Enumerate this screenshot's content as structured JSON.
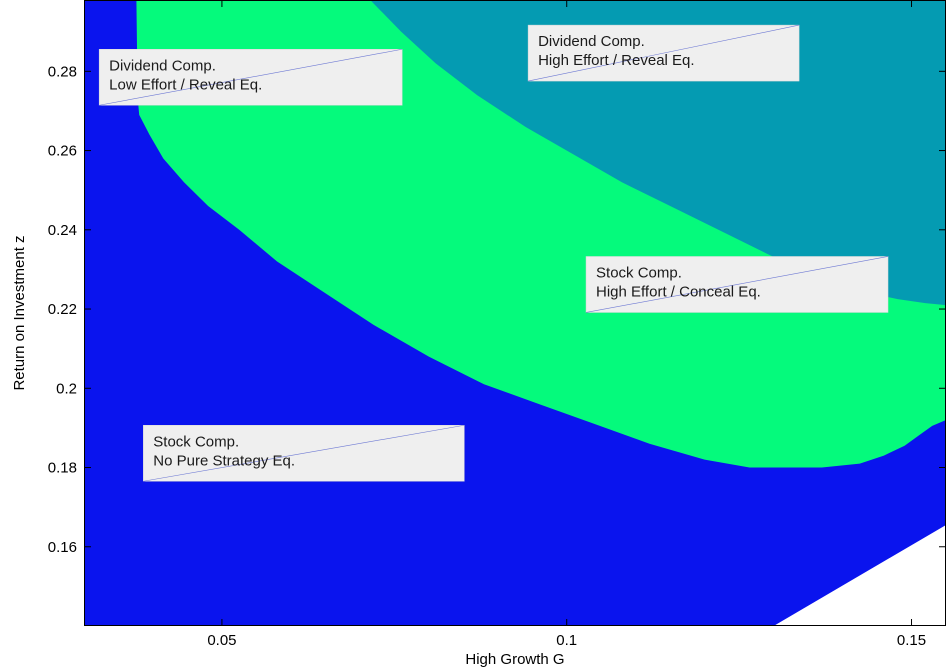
{
  "chart_data": {
    "type": "area",
    "xlabel": "High Growth G",
    "ylabel": "Return on Investment z",
    "xlim": [
      0.03,
      0.155
    ],
    "ylim": [
      0.14,
      0.298
    ],
    "x_ticks": [
      {
        "value": 0.05,
        "label": "0.05"
      },
      {
        "value": 0.1,
        "label": "0.1"
      },
      {
        "value": 0.15,
        "label": "0.15"
      }
    ],
    "y_ticks": [
      {
        "value": 0.16,
        "label": "0.16"
      },
      {
        "value": 0.18,
        "label": "0.18"
      },
      {
        "value": 0.2,
        "label": "0.2"
      },
      {
        "value": 0.22,
        "label": "0.22"
      },
      {
        "value": 0.24,
        "label": "0.24"
      },
      {
        "value": 0.26,
        "label": "0.26"
      },
      {
        "value": 0.28,
        "label": "0.28"
      }
    ],
    "grid": false,
    "background_color": "#0a14ee",
    "regions": [
      {
        "color": "#05fa7c",
        "boundary": [
          [
            0.0376,
            0.298
          ],
          [
            0.0377,
            0.284
          ],
          [
            0.0378,
            0.273
          ],
          [
            0.038,
            0.269
          ],
          [
            0.0395,
            0.264
          ],
          [
            0.0415,
            0.258
          ],
          [
            0.0445,
            0.252
          ],
          [
            0.048,
            0.246
          ],
          [
            0.0525,
            0.24
          ],
          [
            0.058,
            0.232
          ],
          [
            0.065,
            0.224
          ],
          [
            0.072,
            0.216
          ],
          [
            0.08,
            0.208
          ],
          [
            0.088,
            0.201
          ],
          [
            0.096,
            0.196
          ],
          [
            0.104,
            0.191
          ],
          [
            0.112,
            0.186
          ],
          [
            0.12,
            0.182
          ],
          [
            0.1265,
            0.18
          ],
          [
            0.137,
            0.18
          ],
          [
            0.1425,
            0.181
          ],
          [
            0.146,
            0.183
          ],
          [
            0.149,
            0.1855
          ],
          [
            0.151,
            0.188
          ],
          [
            0.153,
            0.1905
          ],
          [
            0.155,
            0.192
          ],
          [
            0.155,
            0.298
          ]
        ]
      },
      {
        "color": "#049bb2",
        "boundary": [
          [
            0.0715,
            0.298
          ],
          [
            0.076,
            0.29
          ],
          [
            0.081,
            0.282
          ],
          [
            0.087,
            0.274
          ],
          [
            0.094,
            0.266
          ],
          [
            0.101,
            0.259
          ],
          [
            0.108,
            0.252
          ],
          [
            0.115,
            0.246
          ],
          [
            0.122,
            0.24
          ],
          [
            0.129,
            0.234
          ],
          [
            0.135,
            0.229
          ],
          [
            0.14,
            0.226
          ],
          [
            0.144,
            0.224
          ],
          [
            0.148,
            0.2225
          ],
          [
            0.152,
            0.2215
          ],
          [
            0.155,
            0.221
          ],
          [
            0.155,
            0.298
          ]
        ]
      },
      {
        "color": "#ffffff",
        "boundary": [
          [
            0.13,
            0.14
          ],
          [
            0.155,
            0.1655
          ],
          [
            0.155,
            0.14
          ]
        ]
      }
    ],
    "annotations": [
      {
        "lines": [
          "Dividend Comp.",
          "Low Effort / Reveal Eq."
        ],
        "x": 0.0322,
        "y": 0.2785
      },
      {
        "lines": [
          "Dividend Comp.",
          "High Effort / Reveal Eq."
        ],
        "x": 0.0944,
        "y": 0.2846
      },
      {
        "lines": [
          "Stock Comp.",
          "High Effort / Conceal Eq."
        ],
        "x": 0.1028,
        "y": 0.2262
      },
      {
        "lines": [
          "Stock Comp.",
          "No Pure Strategy Eq."
        ],
        "x": 0.0386,
        "y": 0.1836
      }
    ]
  }
}
